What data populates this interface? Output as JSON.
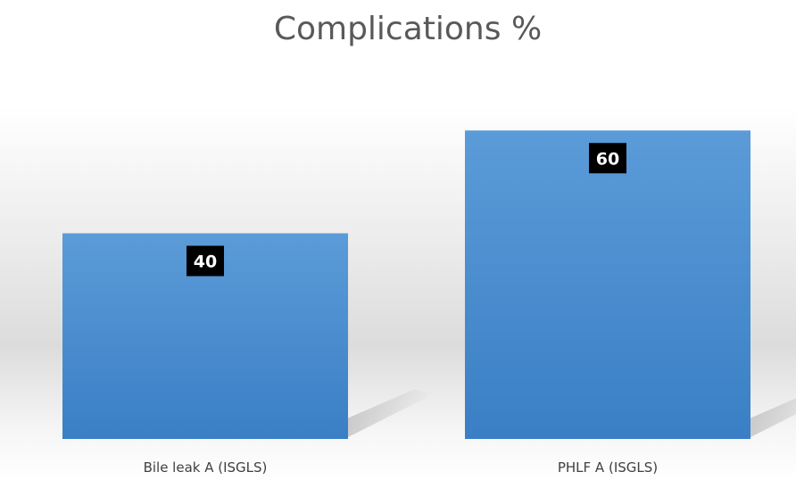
{
  "chart_data": {
    "type": "bar",
    "title": "Complications %",
    "categories": [
      "Bile leak A (ISGLS)",
      "PHLF A (ISGLS)"
    ],
    "values": [
      40,
      60
    ],
    "ylim": [
      0,
      80
    ],
    "grid": false,
    "legend": "none",
    "data_labels": [
      "40",
      "60"
    ],
    "bar_color": "#4a8fd3",
    "label_background": "#000000",
    "label_color": "#ffffff"
  }
}
